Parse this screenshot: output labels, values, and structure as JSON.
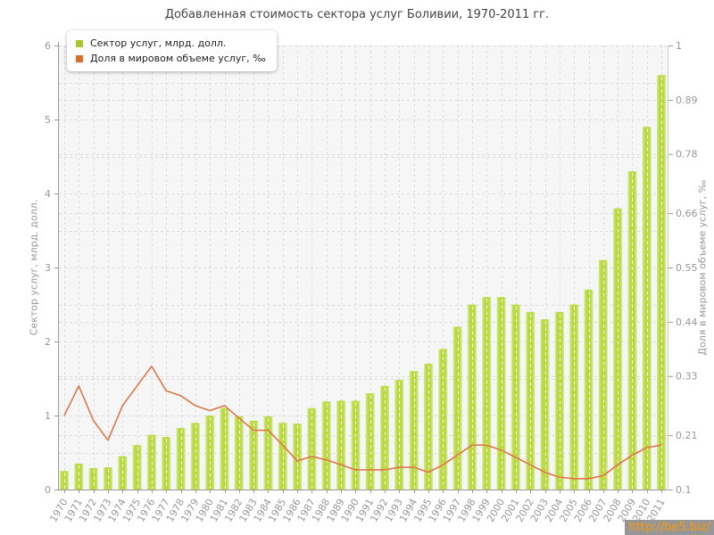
{
  "chart_data": {
    "type": "bar",
    "title": "Добавленная стоимость сектора услуг Боливии, 1970-2011 гг.",
    "ylabel": "Сектор услуг, млрд. долл.",
    "y2label": "Доля в мировом объеме услуг, ‰",
    "categories": [
      "1970",
      "1971",
      "1972",
      "1973",
      "1974",
      "1975",
      "1976",
      "1977",
      "1978",
      "1979",
      "1980",
      "1981",
      "1982",
      "1983",
      "1984",
      "1985",
      "1986",
      "1987",
      "1988",
      "1989",
      "1990",
      "1991",
      "1992",
      "1993",
      "1994",
      "1995",
      "1996",
      "1997",
      "1998",
      "1999",
      "2000",
      "2001",
      "2002",
      "2003",
      "2004",
      "2005",
      "2006",
      "2007",
      "2008",
      "2009",
      "2010",
      "2011"
    ],
    "series": [
      {
        "name": "Сектор услуг, млрд. долл.",
        "type": "bar",
        "axis": "left",
        "values": [
          0.25,
          0.35,
          0.29,
          0.3,
          0.45,
          0.6,
          0.74,
          0.71,
          0.83,
          0.9,
          1.0,
          1.1,
          0.99,
          0.93,
          0.99,
          0.9,
          0.89,
          1.1,
          1.19,
          1.2,
          1.2,
          1.3,
          1.4,
          1.48,
          1.6,
          1.7,
          1.9,
          2.2,
          2.5,
          2.6,
          2.6,
          2.5,
          2.4,
          2.3,
          2.4,
          2.5,
          2.7,
          3.1,
          3.8,
          4.3,
          4.9,
          5.6
        ]
      },
      {
        "name": "Доля в мировом объеме услуг, ‰",
        "type": "line",
        "axis": "right",
        "values": [
          0.25,
          0.31,
          0.24,
          0.2,
          0.27,
          0.31,
          0.35,
          0.3,
          0.29,
          0.27,
          0.26,
          0.27,
          0.245,
          0.22,
          0.22,
          0.19,
          0.158,
          0.167,
          0.16,
          0.15,
          0.14,
          0.14,
          0.14,
          0.145,
          0.145,
          0.135,
          0.15,
          0.17,
          0.19,
          0.19,
          0.18,
          0.165,
          0.15,
          0.135,
          0.125,
          0.122,
          0.122,
          0.128,
          0.15,
          0.17,
          0.185,
          0.19
        ]
      }
    ],
    "ylim": [
      0,
      6
    ],
    "y_ticks": [
      "0",
      "1",
      "2",
      "3",
      "4",
      "5",
      "6"
    ],
    "y2lim": [
      0.1,
      1.0
    ],
    "y2_ticks": [
      "0.1",
      "0.21",
      "0.33",
      "0.44",
      "0.55",
      "0.66",
      "0.78",
      "0.89",
      "1"
    ],
    "grid": true,
    "legend_position": "top-left",
    "colors": {
      "bar_fill": "#b9d93f",
      "bar_edge_light": "#d8e893",
      "line": "#e0754a",
      "legend_bar_swatch": "#a8c92e",
      "legend_line_swatch": "#dd6b2f",
      "grid": "#dddddd",
      "axis": "#9a9a9a",
      "tick_text": "#999999",
      "plot_bg": "#f6f6f6",
      "title_text": "#444444"
    }
  },
  "watermark": {
    "text": "http://be5.biz/"
  }
}
